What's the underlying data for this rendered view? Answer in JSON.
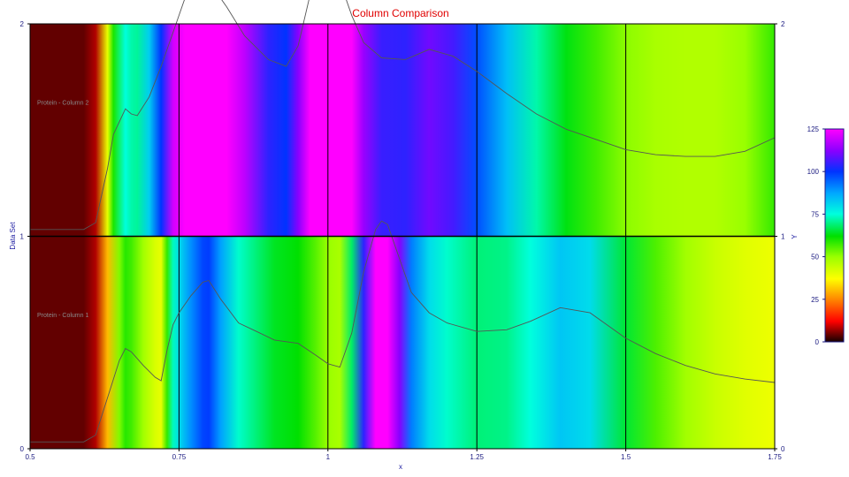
{
  "chart_data": {
    "type": "heatmap",
    "title": "Column Comparison",
    "xlabel": "x",
    "ylabel_left": "Data Set",
    "ylabel_right": "Y",
    "xlim": [
      0.5,
      1.75
    ],
    "xticks": [
      "0.5",
      "0.75",
      "1",
      "1.25",
      "1.5",
      "1.75"
    ],
    "ylim": [
      0,
      2
    ],
    "yticks": [
      "0",
      "1",
      "2"
    ],
    "colorbar": {
      "min": 0,
      "max": 125,
      "ticks": [
        "0",
        "25",
        "50",
        "75",
        "100",
        "125"
      ],
      "stops": [
        {
          "v": 0,
          "color": "#140000"
        },
        {
          "v": 12,
          "color": "#ff0000"
        },
        {
          "v": 25,
          "color": "#ff8800"
        },
        {
          "v": 37,
          "color": "#ffff00"
        },
        {
          "v": 50,
          "color": "#99ff00"
        },
        {
          "v": 62,
          "color": "#00e000"
        },
        {
          "v": 75,
          "color": "#00ffdd"
        },
        {
          "v": 87,
          "color": "#00aaff"
        },
        {
          "v": 100,
          "color": "#0033ff"
        },
        {
          "v": 112,
          "color": "#8800ff"
        },
        {
          "v": 125,
          "color": "#ff00ff"
        }
      ]
    },
    "series": [
      {
        "name": "Protein - Column 1",
        "x": [
          0.5,
          0.55,
          0.59,
          0.61,
          0.63,
          0.65,
          0.66,
          0.67,
          0.69,
          0.71,
          0.72,
          0.73,
          0.74,
          0.75,
          0.77,
          0.79,
          0.8,
          0.82,
          0.85,
          0.88,
          0.91,
          0.95,
          0.98,
          1.0,
          1.02,
          1.04,
          1.06,
          1.08,
          1.09,
          1.1,
          1.12,
          1.14,
          1.17,
          1.2,
          1.25,
          1.3,
          1.34,
          1.39,
          1.44,
          1.5,
          1.55,
          1.6,
          1.65,
          1.7,
          1.75
        ],
        "y": [
          4,
          4,
          4,
          8,
          30,
          52,
          59,
          57,
          49,
          42,
          40,
          58,
          73,
          80,
          90,
          98,
          99,
          88,
          74,
          69,
          64,
          62,
          55,
          50,
          48,
          68,
          104,
          129,
          134,
          132,
          112,
          92,
          80,
          74,
          69,
          70,
          75,
          83,
          80,
          65,
          56,
          49,
          44,
          41,
          39
        ]
      },
      {
        "name": "Protein - Column 2",
        "x": [
          0.5,
          0.55,
          0.59,
          0.61,
          0.63,
          0.64,
          0.66,
          0.67,
          0.68,
          0.7,
          0.72,
          0.74,
          0.76,
          0.78,
          0.8,
          0.83,
          0.86,
          0.9,
          0.93,
          0.95,
          0.97,
          0.99,
          1.0,
          1.02,
          1.04,
          1.06,
          1.09,
          1.13,
          1.17,
          1.21,
          1.25,
          1.3,
          1.35,
          1.4,
          1.45,
          1.5,
          1.55,
          1.6,
          1.65,
          1.7,
          1.75
        ],
        "y": [
          4,
          4,
          4,
          8,
          40,
          60,
          75,
          72,
          71,
          82,
          100,
          120,
          140,
          155,
          150,
          135,
          118,
          104,
          100,
          112,
          142,
          167,
          165,
          150,
          130,
          114,
          105,
          104,
          110,
          106,
          97,
          84,
          72,
          63,
          57,
          51,
          48,
          47,
          47,
          50,
          58
        ]
      }
    ]
  }
}
